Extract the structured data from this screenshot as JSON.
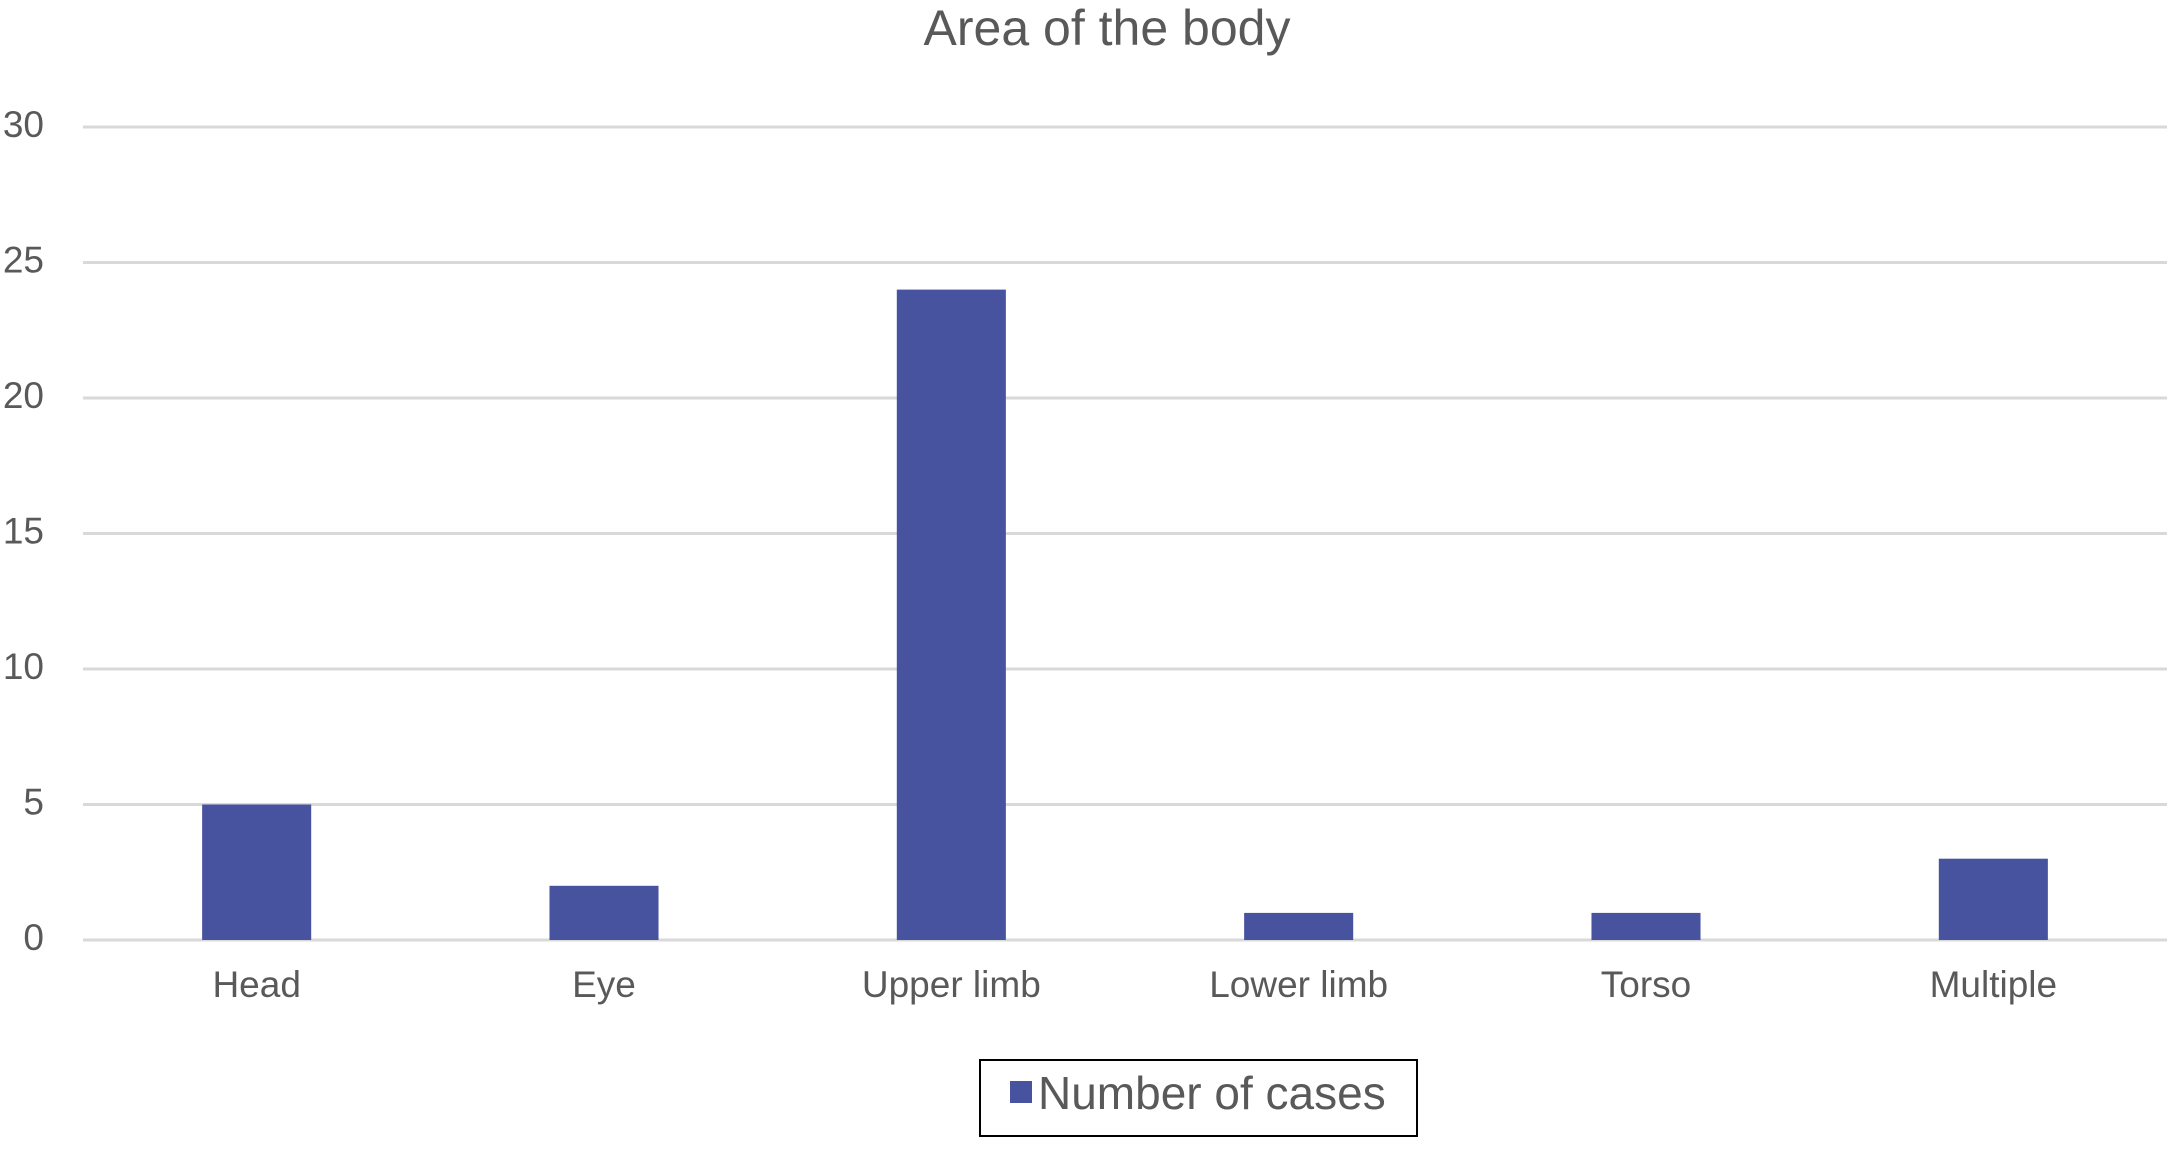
{
  "chart_data": {
    "type": "bar",
    "title": "Area of the body",
    "categories": [
      "Head",
      "Eye",
      "Upper limb",
      "Lower limb",
      "Torso",
      "Multiple"
    ],
    "series": [
      {
        "name": "Number of cases",
        "color": "#4853a0",
        "values": [
          5,
          2,
          24,
          1,
          1,
          3
        ]
      }
    ],
    "ylim": [
      0,
      30
    ],
    "yticks": [
      0,
      5,
      10,
      15,
      20,
      25,
      30
    ],
    "grid": true,
    "legend": "bottom"
  }
}
